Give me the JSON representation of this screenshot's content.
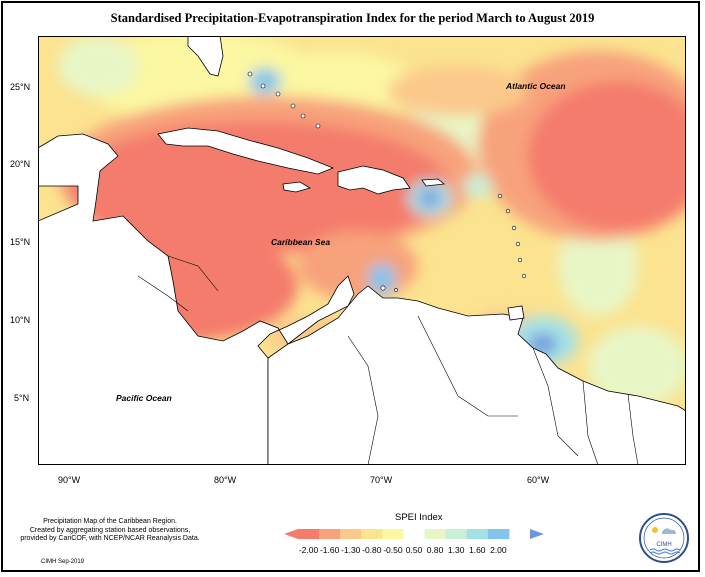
{
  "title": "Standardised Precipitation-Evapotranspiration Index for the period March to August 2019",
  "map": {
    "labels": {
      "atlantic": "Atlantic Ocean",
      "caribbean": "Caribbean Sea",
      "pacific": "Pacific Ocean"
    },
    "lat_ticks": [
      "25°N",
      "20°N",
      "15°N",
      "10°N",
      "5°N"
    ],
    "lon_ticks": [
      "90°W",
      "80°W",
      "70°W",
      "60°W"
    ]
  },
  "legend": {
    "title": "SPEI Index",
    "ticks": [
      "-2.00",
      "-1.60",
      "-1.30",
      "-0.80",
      "-0.50",
      "0.50",
      "0.80",
      "1.30",
      "1.60",
      "2.00"
    ],
    "colors": [
      "#f47c6c",
      "#f8a27c",
      "#fbc98b",
      "#fbe38f",
      "#fbf7a2",
      "#e8f6c6",
      "#c9efd6",
      "#a4e1e6",
      "#83c4ec",
      "#6f94de"
    ]
  },
  "footnote": {
    "line1": "Precipitation Map of the Caribbean Region.",
    "line2": "Created by aggregating station based observations,",
    "line3": "provided by CariCOF, with NCEP/NCAR Reanalysis Data.",
    "credit": "CIMH Sep-2019"
  },
  "logo": {
    "text": "CIMH"
  }
}
